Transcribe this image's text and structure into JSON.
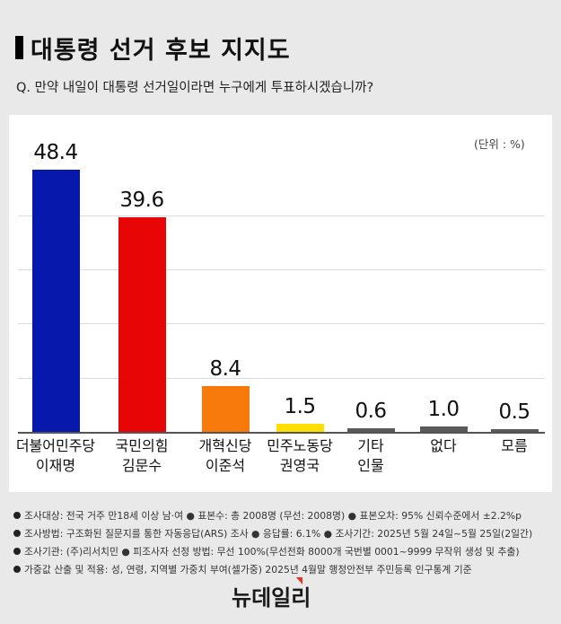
{
  "header": {
    "title": "대통령 선거 후보 지지도",
    "question": "Q. 만약 내일이 대통령 선거일이라면 누구에게 투표하시겠습니까?"
  },
  "chart_data": {
    "type": "bar",
    "title": "대통령 선거 후보 지지도",
    "subtitle": "Q. 만약 내일이 대통령 선거일이라면 누구에게 투표하시겠습니까?",
    "unit_label": "(단위 : %)",
    "categories": [
      "더불어민주당 이재명",
      "국민의힘 김문수",
      "개혁신당 이준석",
      "민주노동당 권영국",
      "기타 인물",
      "없다",
      "모름"
    ],
    "category_lines": [
      [
        "더불어민주당",
        "이재명"
      ],
      [
        "국민의힘",
        "김문수"
      ],
      [
        "개혁신당",
        "이준석"
      ],
      [
        "민주노동당",
        "권영국"
      ],
      [
        "기타",
        "인물"
      ],
      [
        "없다",
        ""
      ],
      [
        "모름",
        ""
      ]
    ],
    "values": [
      48.4,
      39.6,
      8.4,
      1.5,
      0.6,
      1.0,
      0.5
    ],
    "value_labels": [
      "48.4",
      "39.6",
      "8.4",
      "1.5",
      "0.6",
      "1.0",
      "0.5"
    ],
    "colors": [
      "#0718ad",
      "#e80505",
      "#f77a0b",
      "#ffde00",
      "#5a5a5a",
      "#5a5a5a",
      "#5a5a5a"
    ],
    "xlabel": "",
    "ylabel": "",
    "ylim": [
      0,
      50
    ],
    "gridlines": [
      10,
      20,
      30,
      40
    ],
    "grid": true,
    "legend": "none"
  },
  "footnotes": [
    "조사대상: 전국 거주 만18세 이상 남·여 ● 표본수: 총 2008명 (무선: 2008명) ● 표본오차: 95% 신뢰수준에서 ±2.2%p",
    "조사방법: 구조화된 질문지를 통한 자동응답(ARS) 조사 ● 응답률: 6.1% ● 조사기간: 2025년 5월 24일~5월 25일(2일간)",
    "조사기관: (주)리서치민 ● 피조사자 선정 방법: 무선 100%(무선전화 8000개 국번별 0001~9999 무작위 생성 및 추출)",
    "가중값 산출 및 적용: 성, 연령, 지역별 가중치 부여(셀가중) 2025년 4월말 행정안전부 주민등록 인구통계 기준"
  ],
  "logo": {
    "text": "뉴데일리",
    "accent_color": "#e8311f"
  }
}
